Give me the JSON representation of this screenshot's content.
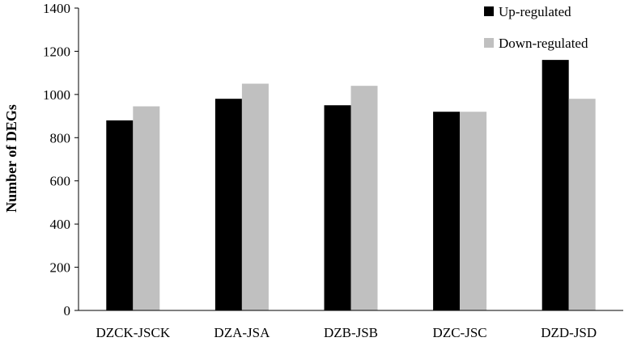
{
  "chart_data": {
    "type": "bar",
    "title": "",
    "xlabel": "",
    "ylabel": "Number of DEGs",
    "categories": [
      "DZCK-JSCK",
      "DZA-JSA",
      "DZB-JSB",
      "DZC-JSC",
      "DZD-JSD"
    ],
    "series": [
      {
        "name": "Up-regulated",
        "color": "#000000",
        "values": [
          880,
          980,
          950,
          920,
          1160
        ]
      },
      {
        "name": "Down-regulated",
        "color": "#c0c0c0",
        "values": [
          945,
          1050,
          1040,
          920,
          980
        ]
      }
    ],
    "ylim": [
      0,
      1400
    ],
    "yticks": [
      0,
      200,
      400,
      600,
      800,
      1000,
      1200,
      1400
    ],
    "grid": false,
    "legend_position": "top-right"
  }
}
